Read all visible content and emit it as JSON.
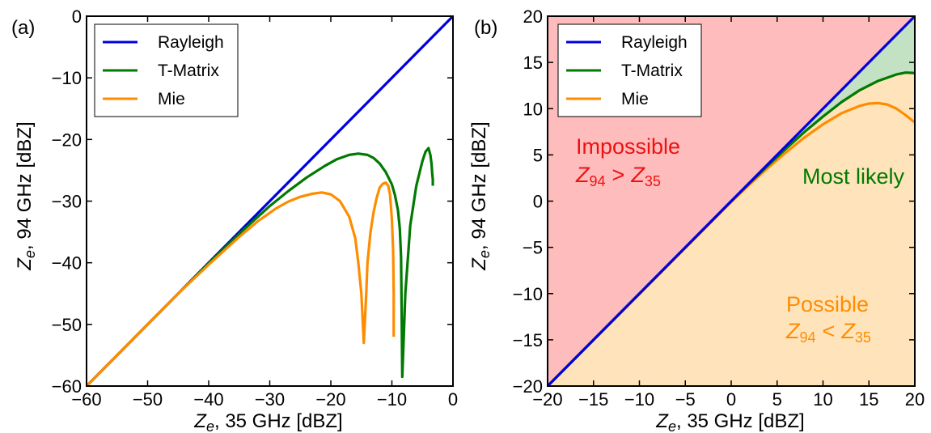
{
  "chart_data": [
    {
      "panel_label": "(a)",
      "type": "line",
      "xlabel": "Z",
      "xlabel_sub": "e",
      "xlabel_tail": ", 35 GHz [dBZ]",
      "ylabel": "Z",
      "ylabel_sub": "e",
      "ylabel_tail": ", 94 GHz [dBZ]",
      "xlim": [
        -60,
        0
      ],
      "ylim": [
        -60,
        0
      ],
      "xticks": [
        -60,
        -50,
        -40,
        -30,
        -20,
        -10,
        0
      ],
      "yticks": [
        -60,
        -50,
        -40,
        -30,
        -20,
        -10,
        0
      ],
      "xtick_labels": [
        "−60",
        "−50",
        "−40",
        "−30",
        "−20",
        "−10",
        "0"
      ],
      "ytick_labels": [
        "−60",
        "−50",
        "−40",
        "−30",
        "−20",
        "−10",
        "0"
      ],
      "legend_position": "top-left",
      "series": [
        {
          "name": "Rayleigh",
          "color": "#0000e0",
          "x": [
            -60,
            0
          ],
          "y": [
            -60,
            0
          ]
        },
        {
          "name": "T-Matrix",
          "color": "#007a00",
          "x": [
            -60,
            -50,
            -45,
            -40,
            -35,
            -30,
            -27,
            -24,
            -21,
            -19,
            -17,
            -15.5,
            -14,
            -13,
            -12,
            -11,
            -10,
            -9.5,
            -9,
            -8.7,
            -8.5,
            -8.4,
            -8.3,
            -7.8,
            -7,
            -6,
            -5,
            -4.5,
            -4,
            -3.7,
            -3.5,
            -3.4,
            -3.3,
            -3.3
          ],
          "y": [
            -60,
            -50,
            -45,
            -40.1,
            -35.3,
            -30.8,
            -28.4,
            -26.2,
            -24.3,
            -23.2,
            -22.5,
            -22.3,
            -22.5,
            -23,
            -23.9,
            -25.3,
            -27.3,
            -29,
            -31.5,
            -34.5,
            -39,
            -48,
            -58.5,
            -45,
            -34,
            -27.5,
            -23.5,
            -22,
            -21.4,
            -22.5,
            -24,
            -25.5,
            -26.5,
            -27.5
          ]
        },
        {
          "name": "Mie",
          "color": "#ff8c00",
          "x": [
            -60,
            -50,
            -45,
            -40,
            -35,
            -32,
            -29,
            -27,
            -25,
            -23,
            -21.5,
            -20,
            -18.5,
            -17,
            -16,
            -15.5,
            -15,
            -14.8,
            -14.6,
            -14.4,
            -14.2,
            -14,
            -13.5,
            -13,
            -12.5,
            -12,
            -11.5,
            -11,
            -10.6,
            -10.3,
            -10,
            -9.8,
            -9.7,
            -9.7
          ],
          "y": [
            -60,
            -50,
            -45,
            -40.3,
            -35.8,
            -33.3,
            -31.2,
            -30.1,
            -29.3,
            -28.8,
            -28.6,
            -28.9,
            -30,
            -32.5,
            -36,
            -40,
            -45,
            -49,
            -53,
            -49,
            -45,
            -40,
            -35,
            -31.8,
            -29.5,
            -27.8,
            -27.2,
            -27,
            -27.5,
            -29,
            -33,
            -38,
            -45,
            -52
          ]
        }
      ]
    },
    {
      "panel_label": "(b)",
      "type": "area",
      "xlabel": "Z",
      "xlabel_sub": "e",
      "xlabel_tail": ", 35 GHz [dBZ]",
      "ylabel": "Z",
      "ylabel_sub": "e",
      "ylabel_tail": ", 94 GHz [dBZ]",
      "xlim": [
        -20,
        20
      ],
      "ylim": [
        -20,
        20
      ],
      "xticks": [
        -20,
        -15,
        -10,
        -5,
        0,
        5,
        10,
        15,
        20
      ],
      "yticks": [
        -20,
        -15,
        -10,
        -5,
        0,
        5,
        10,
        15,
        20
      ],
      "xtick_labels": [
        "−20",
        "−15",
        "−10",
        "−5",
        "0",
        "5",
        "10",
        "15",
        "20"
      ],
      "ytick_labels": [
        "−20",
        "−15",
        "−10",
        "−5",
        "0",
        "5",
        "10",
        "15",
        "20"
      ],
      "legend_position": "top-left",
      "region_colors": {
        "impossible": "#ffbcbc",
        "most_likely": "#c3e2c3",
        "possible": "#ffe4bb"
      },
      "annotations": {
        "impossible": {
          "title": "Impossible",
          "math_left": "Z",
          "sub_left": "94",
          "op": ">",
          "math_right": "Z",
          "sub_right": "35",
          "color": "#ee1111"
        },
        "most_likely": {
          "title": "Most likely",
          "color": "#007a00"
        },
        "possible": {
          "title": "Possible",
          "math_left": "Z",
          "sub_left": "94",
          "op": "<",
          "math_right": "Z",
          "sub_right": "35",
          "color": "#ff8c00"
        }
      },
      "series": [
        {
          "name": "Rayleigh",
          "color": "#0000e0",
          "x": [
            -20,
            20
          ],
          "y": [
            -20,
            20
          ]
        },
        {
          "name": "T-Matrix",
          "color": "#007a00",
          "x": [
            -20,
            -10,
            0,
            2,
            4,
            6,
            8,
            10,
            12,
            14,
            16,
            18,
            19,
            20
          ],
          "y": [
            -20,
            -10,
            0,
            1.95,
            3.85,
            5.7,
            7.5,
            9.15,
            10.7,
            12.0,
            13.0,
            13.7,
            13.9,
            13.85
          ]
        },
        {
          "name": "Mie",
          "color": "#ff8c00",
          "x": [
            -20,
            -10,
            0,
            2,
            4,
            6,
            8,
            10,
            12,
            14,
            15,
            16,
            17,
            18,
            19,
            20
          ],
          "y": [
            -20,
            -10.05,
            -0.1,
            1.8,
            3.6,
            5.3,
            6.9,
            8.3,
            9.5,
            10.3,
            10.55,
            10.6,
            10.45,
            10.0,
            9.3,
            8.5
          ]
        }
      ]
    }
  ]
}
